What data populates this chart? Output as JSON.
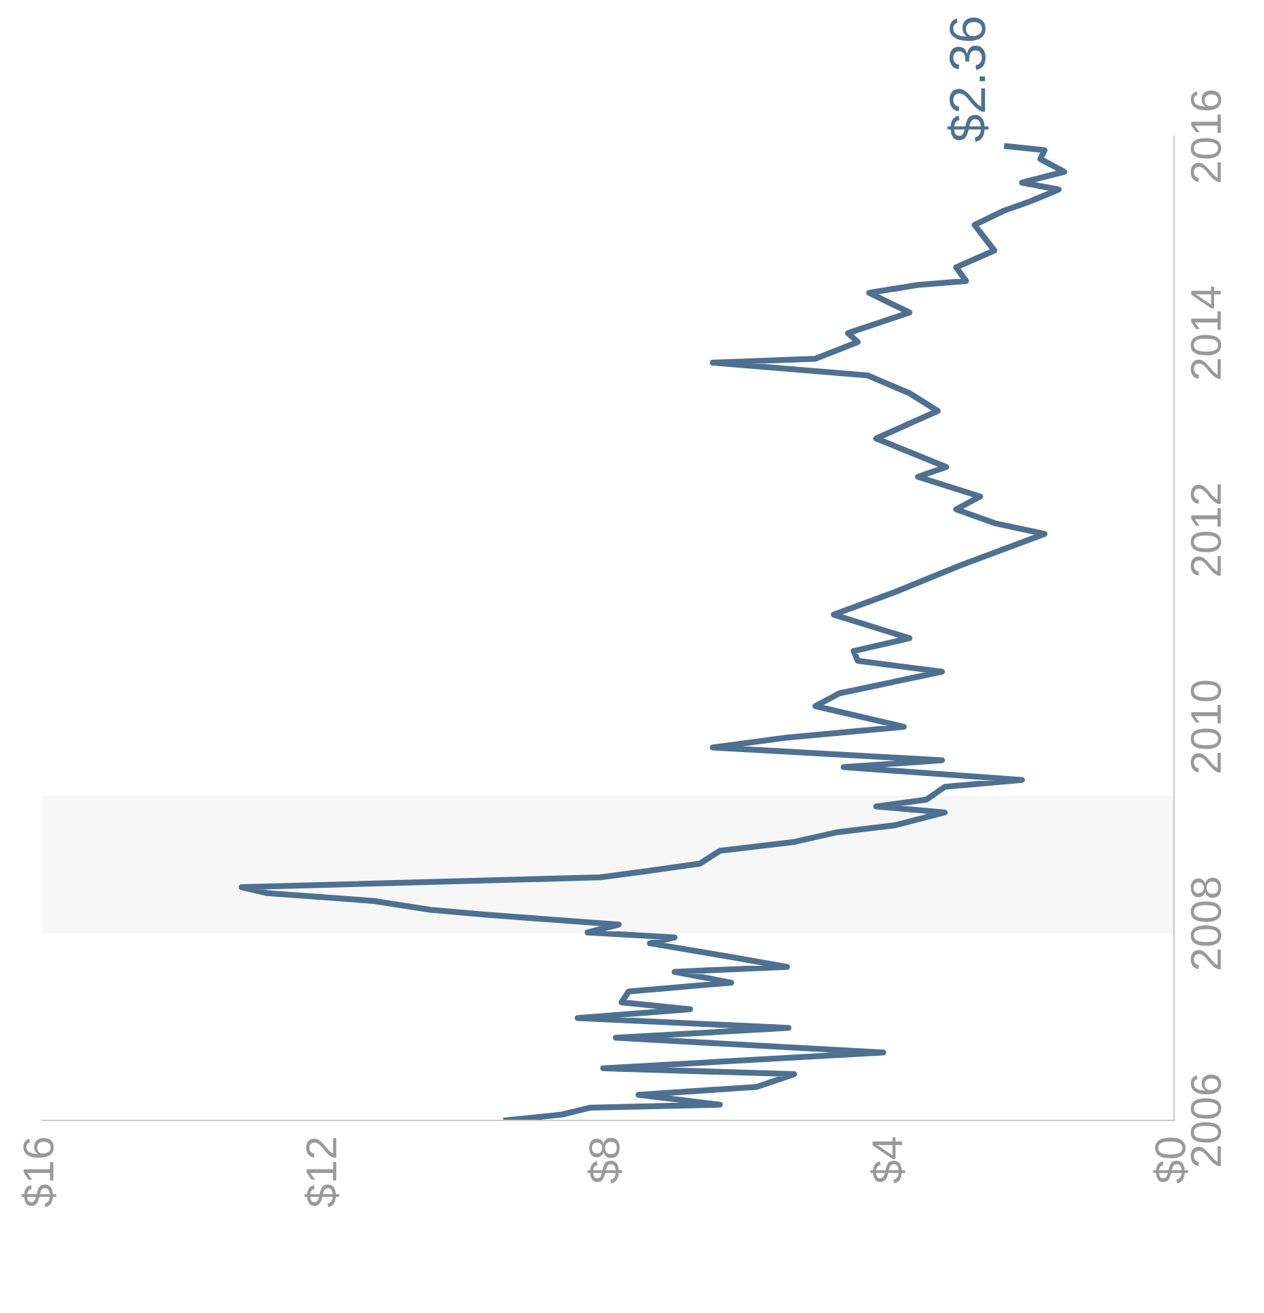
{
  "chart_data": {
    "type": "line",
    "x": [
      9.44,
      8.65,
      8.25,
      6.42,
      7.57,
      5.9,
      5.37,
      8.07,
      4.11,
      7.89,
      5.45,
      8.43,
      6.84,
      7.81,
      7.71,
      6.26,
      7.06,
      5.47,
      6.34,
      7.41,
      7.06,
      8.29,
      7.85,
      9.72,
      10.51,
      11.31,
      12.82,
      13.18,
      8.11,
      7.49,
      6.7,
      6.42,
      5.37,
      4.75,
      3.94,
      3.24,
      4.21,
      3.5,
      3.24,
      2.15,
      4.67,
      3.28,
      6.52,
      5.47,
      3.82,
      5.07,
      4.73,
      3.28,
      4.47,
      4.53,
      3.74,
      4.81,
      3.94,
      3.02,
      1.83,
      2.54,
      3.08,
      2.74,
      3.62,
      3.22,
      4.21,
      3.34,
      3.74,
      4.33,
      6.52,
      5.07,
      4.47,
      4.61,
      3.74,
      4.31,
      3.62,
      2.94,
      3.08,
      2.54,
      2.82,
      2.42,
      2.03,
      1.63,
      2.15,
      1.55,
      1.89,
      1.83,
      2.36
    ],
    "series": [
      {
        "color": "#4e7091",
        "values": [
          2006.0,
          2006.06,
          2006.13,
          2006.16,
          2006.26,
          2006.34,
          2006.47,
          2006.53,
          2006.69,
          2006.84,
          2006.94,
          2007.04,
          2007.13,
          2007.2,
          2007.31,
          2007.4,
          2007.51,
          2007.56,
          2007.67,
          2007.8,
          2007.86,
          2007.91,
          2007.99,
          2008.09,
          2008.14,
          2008.23,
          2008.31,
          2008.37,
          2008.47,
          2008.53,
          2008.61,
          2008.74,
          2008.83,
          2008.93,
          2009.0,
          2009.13,
          2009.19,
          2009.26,
          2009.39,
          2009.46,
          2009.59,
          2009.66,
          2009.79,
          2009.89,
          2010.0,
          2010.21,
          2010.34,
          2010.56,
          2010.67,
          2010.77,
          2010.9,
          2011.14,
          2011.37,
          2011.64,
          2011.96,
          2012.07,
          2012.21,
          2012.34,
          2012.54,
          2012.64,
          2012.93,
          2013.21,
          2013.39,
          2013.57,
          2013.7,
          2013.74,
          2013.91,
          2014.0,
          2014.21,
          2014.41,
          2014.49,
          2014.53,
          2014.67,
          2014.84,
          2015.1,
          2015.24,
          2015.34,
          2015.46,
          2015.53,
          2015.64,
          2015.77,
          2015.86,
          2015.9
        ]
      }
    ],
    "xlim": [
      16,
      0
    ],
    "xticks": [
      {
        "value": 0,
        "label": "$0"
      },
      {
        "value": 4,
        "label": "$4"
      },
      {
        "value": 8,
        "label": "$8"
      },
      {
        "value": 12,
        "label": "$12"
      },
      {
        "value": 16,
        "label": "$16"
      }
    ],
    "ylim": [
      2006,
      2016
    ],
    "yticks": [
      2006,
      2008,
      2010,
      2012,
      2014,
      2016
    ],
    "bands": [
      {
        "axis": "y",
        "from": 2007.9,
        "to": 2009.3,
        "color": "#f7f7f7"
      }
    ],
    "annotations": [
      {
        "text": "$2.36",
        "x": 2.36,
        "y": 2015.9
      }
    ],
    "grid": false,
    "marker": "none",
    "line_style": "solid"
  }
}
